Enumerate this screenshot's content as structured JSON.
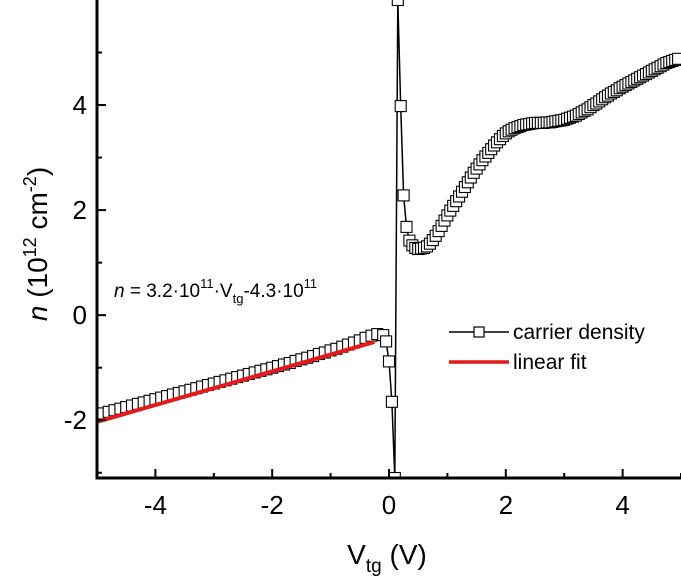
{
  "chart_data": {
    "type": "scatter",
    "title": "",
    "xlabel": {
      "main": "V",
      "sub": "tg",
      "unit": " (V)"
    },
    "ylabel": {
      "italic": "n",
      "pre": " (10",
      "sup1": "12",
      "mid": " cm",
      "sup2": "-2",
      "post": ")"
    },
    "xlim": [
      -5,
      5
    ],
    "ylim": [
      -3.1,
      6.0
    ],
    "xticks": [
      -4,
      -2,
      0,
      2,
      4
    ],
    "yticks": [
      -2,
      0,
      2,
      4
    ],
    "xticklabels": [
      "-4",
      "-2",
      "0",
      "2",
      "4"
    ],
    "yticklabels": [
      "-2",
      "0",
      "2",
      "4"
    ],
    "legend_position": "center-right",
    "annotation": {
      "italic": "n",
      "eq": " = 3.2·10",
      "sup1": "11",
      "mid": "·V",
      "sub": "tg",
      "mid2": "-4.3·10",
      "sup2": "11"
    },
    "colors": {
      "data": "#000000",
      "fit": "#e31a1c"
    },
    "series": [
      {
        "name": "carrier density",
        "style": "line-with-open-squares",
        "x": [
          -5.0,
          -4.9,
          -4.8,
          -4.7,
          -4.6,
          -4.5,
          -4.4,
          -4.3,
          -4.2,
          -4.1,
          -4.0,
          -3.9,
          -3.8,
          -3.7,
          -3.6,
          -3.5,
          -3.4,
          -3.3,
          -3.2,
          -3.1,
          -3.0,
          -2.9,
          -2.8,
          -2.7,
          -2.6,
          -2.5,
          -2.4,
          -2.3,
          -2.2,
          -2.1,
          -2.0,
          -1.9,
          -1.8,
          -1.7,
          -1.6,
          -1.5,
          -1.4,
          -1.3,
          -1.2,
          -1.1,
          -1.0,
          -0.9,
          -0.8,
          -0.7,
          -0.6,
          -0.5,
          -0.4,
          -0.3,
          -0.2,
          -0.1,
          -0.05,
          0.0,
          0.05,
          0.1,
          0.15,
          0.2,
          0.25,
          0.3,
          0.35,
          0.4,
          0.45,
          0.5,
          0.55,
          0.6,
          0.65,
          0.7,
          0.75,
          0.8,
          0.85,
          0.9,
          0.95,
          1.0,
          1.05,
          1.1,
          1.15,
          1.2,
          1.25,
          1.3,
          1.35,
          1.4,
          1.45,
          1.5,
          1.55,
          1.6,
          1.65,
          1.7,
          1.75,
          1.8,
          1.85,
          1.9,
          1.95,
          2.0,
          2.05,
          2.1,
          2.15,
          2.2,
          2.25,
          2.3,
          2.35,
          2.4,
          2.45,
          2.5,
          2.55,
          2.6,
          2.65,
          2.7,
          2.75,
          2.8,
          2.85,
          2.9,
          2.95,
          3.0,
          3.05,
          3.1,
          3.15,
          3.2,
          3.25,
          3.3,
          3.35,
          3.4,
          3.45,
          3.5,
          3.55,
          3.6,
          3.65,
          3.7,
          3.75,
          3.8,
          3.85,
          3.9,
          3.95,
          4.0,
          4.05,
          4.1,
          4.15,
          4.2,
          4.25,
          4.3,
          4.35,
          4.4,
          4.45,
          4.5,
          4.55,
          4.6,
          4.65,
          4.7,
          4.75,
          4.8,
          4.85,
          4.9,
          4.95
        ],
        "y": [
          -1.9,
          -1.87,
          -1.84,
          -1.81,
          -1.78,
          -1.75,
          -1.72,
          -1.69,
          -1.66,
          -1.63,
          -1.6,
          -1.57,
          -1.54,
          -1.51,
          -1.48,
          -1.45,
          -1.42,
          -1.39,
          -1.36,
          -1.33,
          -1.3,
          -1.27,
          -1.24,
          -1.21,
          -1.18,
          -1.15,
          -1.12,
          -1.09,
          -1.06,
          -1.03,
          -1.0,
          -0.97,
          -0.94,
          -0.91,
          -0.87,
          -0.84,
          -0.81,
          -0.78,
          -0.74,
          -0.71,
          -0.67,
          -0.64,
          -0.6,
          -0.56,
          -0.52,
          -0.48,
          -0.43,
          -0.39,
          -0.36,
          -0.38,
          -0.5,
          -0.88,
          -1.65,
          -3.1,
          6.0,
          3.98,
          2.28,
          1.68,
          1.42,
          1.33,
          1.28,
          1.26,
          1.27,
          1.28,
          1.31,
          1.36,
          1.43,
          1.51,
          1.6,
          1.7,
          1.8,
          1.9,
          1.99,
          2.08,
          2.17,
          2.26,
          2.35,
          2.44,
          2.53,
          2.62,
          2.71,
          2.79,
          2.87,
          2.95,
          3.02,
          3.09,
          3.16,
          3.23,
          3.29,
          3.35,
          3.41,
          3.46,
          3.5,
          3.53,
          3.56,
          3.58,
          3.6,
          3.62,
          3.63,
          3.64,
          3.65,
          3.66,
          3.66,
          3.66,
          3.66,
          3.67,
          3.67,
          3.68,
          3.69,
          3.7,
          3.71,
          3.72,
          3.74,
          3.76,
          3.78,
          3.8,
          3.83,
          3.86,
          3.89,
          3.92,
          3.96,
          4.0,
          4.03,
          4.07,
          4.11,
          4.15,
          4.18,
          4.22,
          4.25,
          4.28,
          4.32,
          4.35,
          4.38,
          4.41,
          4.44,
          4.47,
          4.5,
          4.53,
          4.56,
          4.59,
          4.62,
          4.65,
          4.68,
          4.71,
          4.74,
          4.77,
          4.8,
          4.82,
          4.84,
          4.86,
          4.88
        ]
      },
      {
        "name": "linear fit",
        "style": "line",
        "x": [
          -5.0,
          -0.25
        ],
        "y": [
          -2.03,
          -0.51
        ]
      }
    ]
  }
}
